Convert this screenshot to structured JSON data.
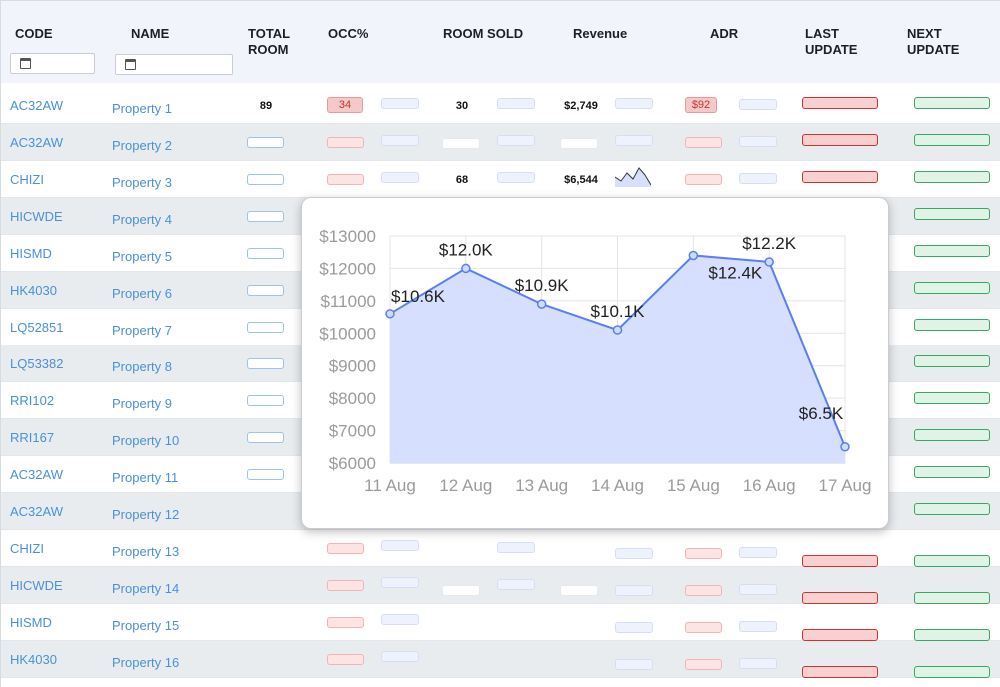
{
  "header": {
    "code": "CODE",
    "name": "NAME",
    "total_room": [
      "TOTAL",
      "ROOM"
    ],
    "occ": "OCC%",
    "room_sold": "ROOM SOLD",
    "revenue": "Revenue",
    "adr": "ADR",
    "last_update": [
      "LAST",
      "UPDATE"
    ],
    "next_update": [
      "NEXT",
      "UPDATE"
    ]
  },
  "rows": [
    {
      "code": "AC32AW",
      "name": "Property 1",
      "total": "89",
      "occ": "34",
      "sold": "30",
      "revenue": "$2,749",
      "adr": "$92"
    },
    {
      "code": "AC32AW",
      "name": "Property 2"
    },
    {
      "code": "CHIZI",
      "name": "Property 3",
      "sold": "68",
      "revenue": "$6,544"
    },
    {
      "code": "HICWDE",
      "name": "Property 4"
    },
    {
      "code": "HISMD",
      "name": "Property 5"
    },
    {
      "code": "HK4030",
      "name": "Property 6"
    },
    {
      "code": "LQ52851",
      "name": "Property 7"
    },
    {
      "code": "LQ53382",
      "name": "Property 8"
    },
    {
      "code": "RRI102",
      "name": "Property 9"
    },
    {
      "code": "RRI167",
      "name": "Property 10"
    },
    {
      "code": "AC32AW",
      "name": "Property 11"
    },
    {
      "code": "AC32AW",
      "name": "Property 12"
    },
    {
      "code": "CHIZI",
      "name": "Property 13"
    },
    {
      "code": "HICWDE",
      "name": "Property 14"
    },
    {
      "code": "HISMD",
      "name": "Property 15"
    },
    {
      "code": "HK4030",
      "name": "Property 16"
    }
  ],
  "colors": {
    "accent": "#4a90d9",
    "line": "#5b7ff0",
    "fill": "#d6dffd"
  },
  "chart_data": {
    "type": "area",
    "x": [
      "11 Aug",
      "12 Aug",
      "13 Aug",
      "14 Aug",
      "15 Aug",
      "16 Aug",
      "17 Aug"
    ],
    "values": [
      10600,
      12000,
      10900,
      10100,
      12400,
      12200,
      6500
    ],
    "data_labels": [
      "$10.6K",
      "$12.0K",
      "$10.9K",
      "$10.1K",
      "$12.4K",
      "$12.2K",
      "$6.5K"
    ],
    "yticks": [
      "$6000",
      "$7000",
      "$8000",
      "$9000",
      "$10000",
      "$11000",
      "$12000",
      "$13000"
    ],
    "ylim": [
      6000,
      13000
    ],
    "grid": true
  }
}
